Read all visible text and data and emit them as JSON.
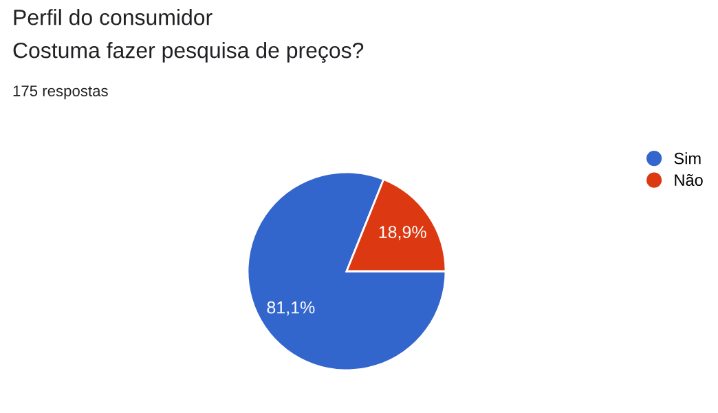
{
  "chart_data": {
    "type": "pie",
    "title": "Perfil do consumidor",
    "subtitle": "Costuma fazer pesquisa de preços?",
    "annotations": [
      "175 respostas"
    ],
    "categories": [
      "Sim",
      "Não"
    ],
    "values": [
      81.1,
      18.9
    ],
    "colors": [
      "#3366cc",
      "#dc3912"
    ],
    "value_labels": [
      "81,1%",
      "18,9%"
    ],
    "legend": "top right"
  }
}
